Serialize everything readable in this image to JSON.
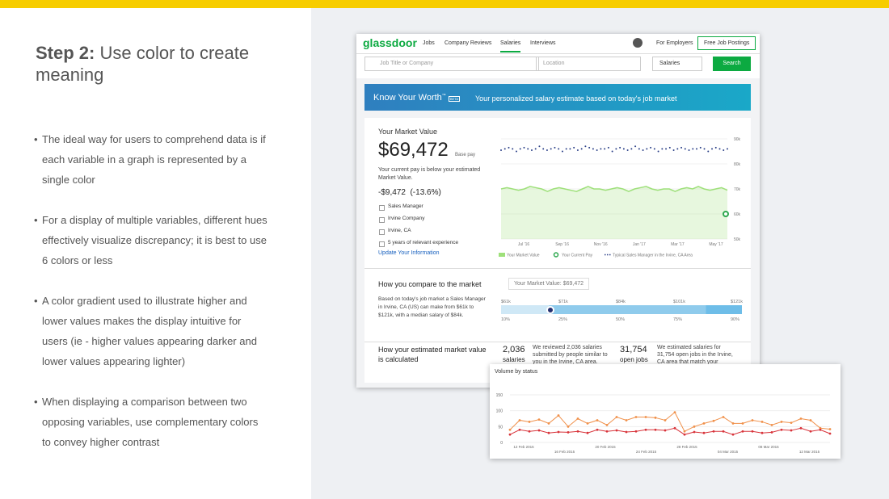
{
  "slide": {
    "title_bold": "Step 2:",
    "title_rest": "Use color to create meaning",
    "bullets": [
      "The ideal way for users to comprehend data is if each variable in a graph is represented by a single color",
      "For a display of multiple variables, different hues effectively visualize discrepancy; it is best to use 6 colors or less",
      "A color gradient used to illustrate higher and lower values makes the display intuitive for users (ie - higher values appearing darker and lower values appearing lighter)",
      "When displaying a comparison between two opposing variables, use complementary colors to convey higher contrast"
    ]
  },
  "glassdoor": {
    "nav": {
      "logo": "glassdoor",
      "links": [
        "Jobs",
        "Company Reviews",
        "Salaries",
        "Interviews"
      ],
      "employers": "For Employers",
      "cta": "Free Job Postings"
    },
    "search": {
      "job_placeholder": "Job Title or Company",
      "location_placeholder": "Location",
      "select": "Salaries",
      "button": "Search"
    },
    "banner": {
      "title": "Know Your Worth",
      "tm": "™",
      "badge": "BETA",
      "tagline": "Your personalized salary estimate based on today's job market"
    },
    "market": {
      "heading": "Your Market Value",
      "value": "$69,472",
      "value_note": "Base pay",
      "note": "Your current pay is below your estimated Market Value.",
      "diff": "-$9,472  (-13.6%)",
      "details": [
        "Sales Manager",
        "Irvine Company",
        "Irvine, CA",
        "5 years of relevant experience"
      ],
      "link": "Update Your Information"
    },
    "chart": {
      "type": "line",
      "ylim": [
        50,
        90
      ],
      "yticks": [
        {
          "value": 90,
          "label": "90k"
        },
        {
          "value": 80,
          "label": "80k"
        },
        {
          "value": 70,
          "label": "70k"
        },
        {
          "value": 60,
          "label": "60k"
        },
        {
          "value": 50,
          "label": "50k"
        }
      ],
      "xtick_labels": [
        "Jul '16",
        "Sep '16",
        "Nov '16",
        "Jan '17",
        "Mar '17",
        "May '17"
      ],
      "series": [
        {
          "name": "Your Market Value",
          "color": "#9ee07a",
          "values": [
            70,
            70.5,
            70,
            69.5,
            70,
            71,
            70.5,
            70,
            69,
            70,
            70.5,
            70,
            69.5,
            69,
            70,
            71,
            70,
            70,
            69.5,
            70,
            70.5,
            70,
            69,
            70,
            70.5,
            71,
            70,
            69.5,
            70,
            70,
            69,
            70,
            70.5,
            70,
            71,
            70,
            69.5,
            70,
            70.5,
            69.5
          ]
        },
        {
          "name": "Your Current Pay",
          "color": "#2ea84f",
          "values": [
            60
          ]
        },
        {
          "name": "Typical Sales Manager in the Irvine, CA Area",
          "color": "#2a3f87",
          "values": [
            85.5,
            86,
            86.5,
            86,
            85,
            86,
            86.5,
            86,
            85.5,
            86,
            87,
            86,
            85.5,
            86,
            86.5,
            86,
            85,
            86,
            86,
            86.5,
            85.5,
            86,
            87,
            86.5,
            86,
            85.5,
            86,
            86,
            86.5,
            85,
            86,
            86.5,
            86,
            85.5,
            86,
            87,
            86,
            85.5,
            86,
            86.5,
            86,
            85,
            86,
            86,
            86.5,
            85.5,
            86,
            86.5,
            86,
            85.5,
            86,
            86,
            86.5,
            86,
            85,
            86,
            86.5,
            86,
            85.5,
            86
          ]
        }
      ]
    },
    "compare": {
      "heading": "How you compare to the market",
      "text": "Based on today's job market a Sales Manager in Irvine, CA (US) can make from $61k to $121k, with a median salary of $84k.",
      "tooltip": "Your Market Value: $69,472",
      "top_labels": [
        "$61k",
        "$71k",
        "$84k",
        "$101k",
        "$121k"
      ],
      "bottom_labels": [
        "10%",
        "25%",
        "50%",
        "75%",
        "90%"
      ]
    },
    "calc": {
      "heading": "How your estimated market value is calculated",
      "n1": "2,036",
      "n1_unit": "salaries",
      "t1": "We reviewed 2,036 salaries submitted by people similar to you in the Irvine, CA area.",
      "n2": "31,754",
      "n2_unit": "open jobs",
      "t2": "We estimated salaries for 31,754 open jobs in the Irvine, CA area that match your"
    }
  },
  "volume": {
    "title": "Volume by status",
    "type": "line",
    "ylim": [
      0,
      150
    ],
    "yticks": [
      0,
      50,
      100,
      150
    ],
    "xtick_labels": [
      "12 Feb 2015",
      "16 Feb 2015",
      "20 Feb 2015",
      "24 Feb 2015",
      "28 Feb 2015",
      "04 Mar 2015",
      "08 Mar 2015",
      "12 Mar 2015"
    ],
    "series": [
      {
        "color": "#f0904a",
        "values": [
          40,
          70,
          65,
          72,
          60,
          85,
          50,
          75,
          60,
          70,
          55,
          80,
          70,
          80,
          80,
          78,
          70,
          95,
          35,
          50,
          60,
          68,
          80,
          60,
          60,
          70,
          65,
          55,
          65,
          62,
          75,
          70,
          45,
          42
        ]
      },
      {
        "color": "#d8333a",
        "values": [
          25,
          40,
          35,
          38,
          30,
          33,
          32,
          35,
          30,
          40,
          35,
          38,
          33,
          35,
          40,
          40,
          38,
          45,
          25,
          33,
          30,
          35,
          35,
          25,
          35,
          35,
          30,
          32,
          40,
          38,
          45,
          35,
          40,
          28
        ]
      }
    ]
  }
}
